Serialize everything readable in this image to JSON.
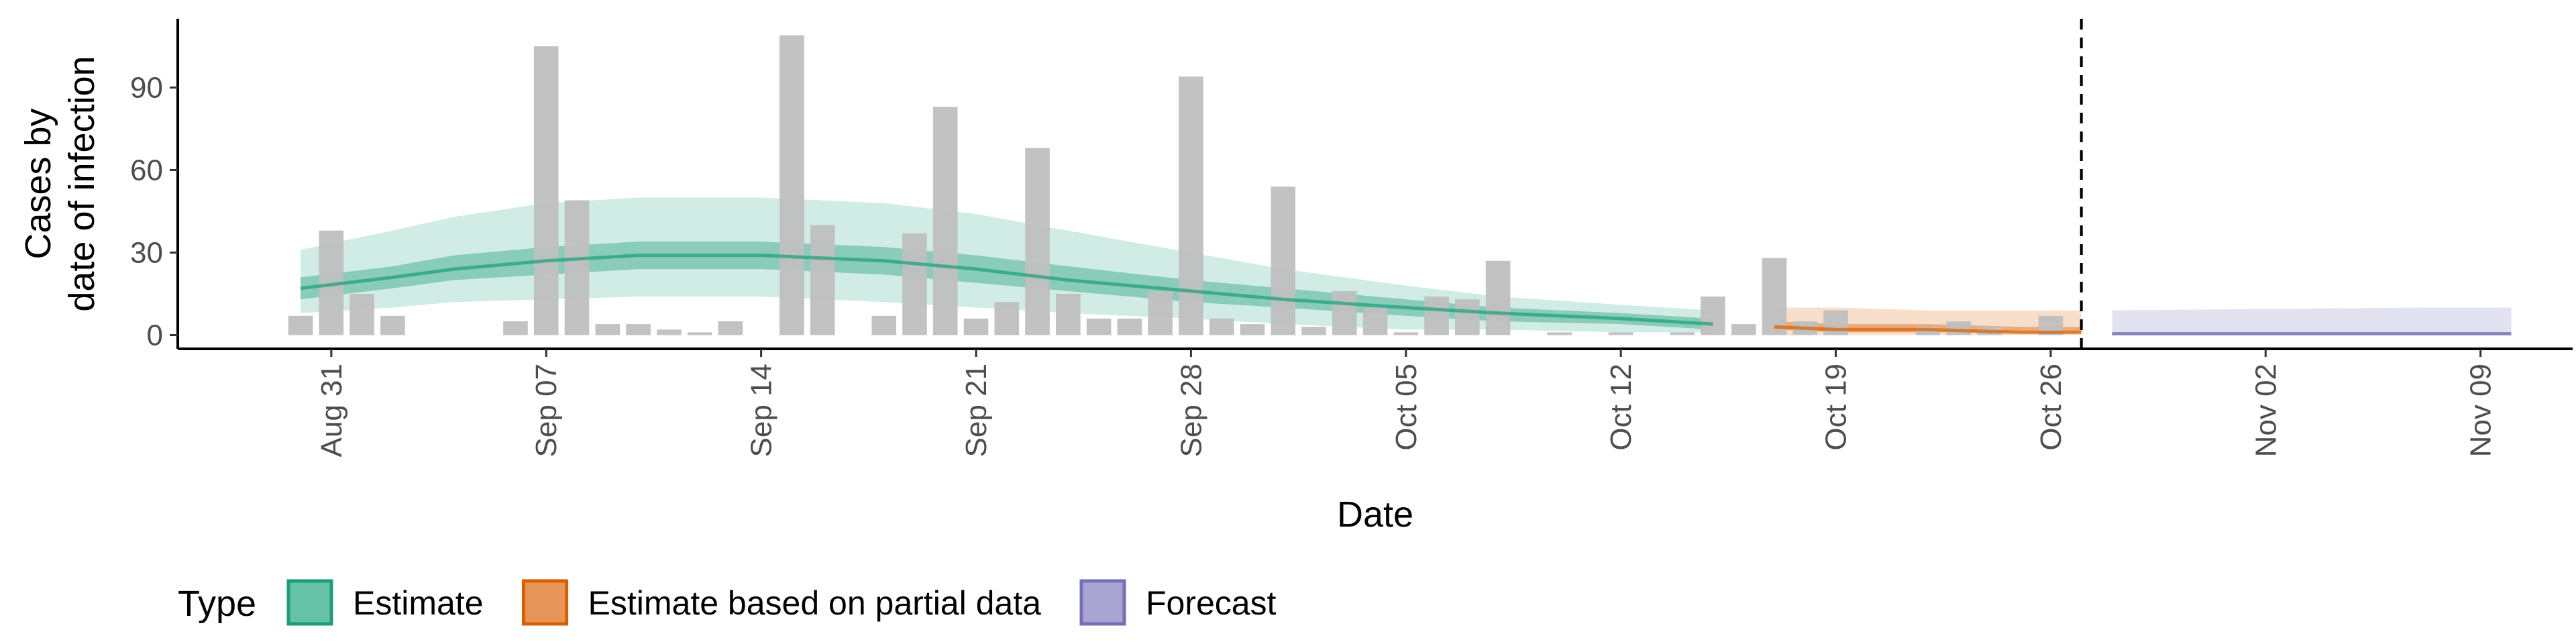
{
  "chart_data": {
    "type": "bar",
    "xlabel": "Date",
    "ylabel_lines": [
      "Cases by",
      "date of infection"
    ],
    "x_ticks": [
      {
        "label": "Aug 31",
        "day": 0
      },
      {
        "label": "Sep 07",
        "day": 7
      },
      {
        "label": "Sep 14",
        "day": 14
      },
      {
        "label": "Sep 21",
        "day": 21
      },
      {
        "label": "Sep 28",
        "day": 28
      },
      {
        "label": "Oct 05",
        "day": 35
      },
      {
        "label": "Oct 12",
        "day": 42
      },
      {
        "label": "Oct 19",
        "day": 49
      },
      {
        "label": "Oct 26",
        "day": 56
      },
      {
        "label": "Nov 02",
        "day": 63
      },
      {
        "label": "Nov 09",
        "day": 70
      }
    ],
    "y_ticks": [
      0,
      30,
      60,
      90
    ],
    "xlim_days": [
      -5,
      73
    ],
    "ylim": [
      -5,
      115
    ],
    "forecast_cutoff_day": 57,
    "legend": {
      "title": "Type",
      "position": "bottom",
      "items": [
        {
          "label": "Estimate",
          "fill": "#66c2a5",
          "stroke": "#1b9e77"
        },
        {
          "label": "Estimate based on partial data",
          "fill": "#e8955a",
          "stroke": "#d95f02"
        },
        {
          "label": "Forecast",
          "fill": "#a9a5d3",
          "stroke": "#7570b3"
        }
      ]
    },
    "colors": {
      "bars": "#bfbfbf",
      "estimate": "#1b9e77",
      "partial": "#d95f02",
      "forecast": "#7570b3",
      "cutoff_line": "#000000"
    },
    "reported_cases": [
      {
        "date": "Aug 30",
        "value": 7
      },
      {
        "date": "Aug 31",
        "value": 38
      },
      {
        "date": "Sep 01",
        "value": 15
      },
      {
        "date": "Sep 02",
        "value": 7
      },
      {
        "date": "Sep 03",
        "value": 0
      },
      {
        "date": "Sep 04",
        "value": 0
      },
      {
        "date": "Sep 05",
        "value": 0
      },
      {
        "date": "Sep 06",
        "value": 5
      },
      {
        "date": "Sep 07",
        "value": 105
      },
      {
        "date": "Sep 08",
        "value": 49
      },
      {
        "date": "Sep 09",
        "value": 4
      },
      {
        "date": "Sep 10",
        "value": 4
      },
      {
        "date": "Sep 11",
        "value": 2
      },
      {
        "date": "Sep 12",
        "value": 1
      },
      {
        "date": "Sep 13",
        "value": 5
      },
      {
        "date": "Sep 14",
        "value": 0
      },
      {
        "date": "Sep 15",
        "value": 109
      },
      {
        "date": "Sep 16",
        "value": 40
      },
      {
        "date": "Sep 17",
        "value": 0
      },
      {
        "date": "Sep 18",
        "value": 7
      },
      {
        "date": "Sep 19",
        "value": 37
      },
      {
        "date": "Sep 20",
        "value": 83
      },
      {
        "date": "Sep 21",
        "value": 6
      },
      {
        "date": "Sep 22",
        "value": 12
      },
      {
        "date": "Sep 23",
        "value": 68
      },
      {
        "date": "Sep 24",
        "value": 15
      },
      {
        "date": "Sep 25",
        "value": 6
      },
      {
        "date": "Sep 26",
        "value": 6
      },
      {
        "date": "Sep 27",
        "value": 16
      },
      {
        "date": "Sep 28",
        "value": 94
      },
      {
        "date": "Sep 29",
        "value": 6
      },
      {
        "date": "Sep 30",
        "value": 4
      },
      {
        "date": "Oct 01",
        "value": 54
      },
      {
        "date": "Oct 02",
        "value": 3
      },
      {
        "date": "Oct 03",
        "value": 16
      },
      {
        "date": "Oct 04",
        "value": 10
      },
      {
        "date": "Oct 05",
        "value": 1
      },
      {
        "date": "Oct 06",
        "value": 14
      },
      {
        "date": "Oct 07",
        "value": 13
      },
      {
        "date": "Oct 08",
        "value": 27
      },
      {
        "date": "Oct 09",
        "value": 0
      },
      {
        "date": "Oct 10",
        "value": 1
      },
      {
        "date": "Oct 11",
        "value": 0
      },
      {
        "date": "Oct 12",
        "value": 1
      },
      {
        "date": "Oct 13",
        "value": 0
      },
      {
        "date": "Oct 14",
        "value": 1
      },
      {
        "date": "Oct 15",
        "value": 14
      },
      {
        "date": "Oct 16",
        "value": 4
      },
      {
        "date": "Oct 17",
        "value": 28
      },
      {
        "date": "Oct 18",
        "value": 5
      },
      {
        "date": "Oct 19",
        "value": 9
      },
      {
        "date": "Oct 20",
        "value": 0
      },
      {
        "date": "Oct 21",
        "value": 0
      },
      {
        "date": "Oct 22",
        "value": 3
      },
      {
        "date": "Oct 23",
        "value": 5
      },
      {
        "date": "Oct 24",
        "value": 3
      },
      {
        "date": "Oct 25",
        "value": 0
      },
      {
        "date": "Oct 26",
        "value": 7
      }
    ],
    "estimate": {
      "days": [
        -1,
        2,
        4,
        7,
        10,
        14,
        18,
        21,
        24,
        28,
        31,
        35,
        38,
        42,
        45
      ],
      "median": [
        17,
        21,
        24,
        27,
        29,
        29,
        27,
        24,
        20,
        16,
        13,
        10,
        8,
        6,
        4
      ],
      "lower50": [
        13,
        17,
        20,
        22,
        24,
        24,
        22,
        19,
        16,
        12,
        10,
        7,
        5,
        4,
        2
      ],
      "upper50": [
        21,
        25,
        29,
        32,
        34,
        34,
        32,
        29,
        25,
        20,
        17,
        13,
        10,
        8,
        6
      ],
      "lower90": [
        8,
        10,
        12,
        13,
        14,
        14,
        12,
        10,
        8,
        6,
        4,
        2,
        2,
        1,
        1
      ],
      "upper90": [
        31,
        38,
        43,
        48,
        50,
        50,
        48,
        44,
        38,
        30,
        24,
        18,
        14,
        11,
        9
      ]
    },
    "partial_estimate": {
      "days": [
        47,
        49,
        52,
        55,
        57
      ],
      "median": [
        3,
        2,
        2,
        1,
        1
      ],
      "lower50": [
        2,
        1,
        1,
        1,
        1
      ],
      "upper50": [
        5,
        4,
        4,
        3,
        3
      ],
      "lower90": [
        0,
        0,
        0,
        0,
        0
      ],
      "upper90": [
        10,
        10,
        9,
        9,
        9
      ]
    },
    "forecast": {
      "days": [
        58,
        63,
        68,
        71
      ],
      "median": [
        0.5,
        0.5,
        0.5,
        0.5
      ],
      "lower50": [
        0,
        0,
        0,
        0
      ],
      "upper50": [
        1,
        1,
        1,
        1
      ],
      "lower90": [
        0,
        0,
        0,
        0
      ],
      "upper90": [
        9,
        9.5,
        10,
        10
      ]
    }
  }
}
